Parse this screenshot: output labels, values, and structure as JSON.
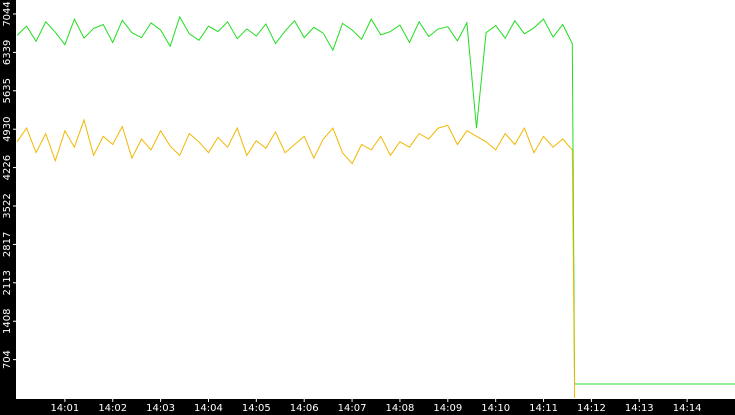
{
  "chart_data": {
    "type": "line",
    "x": [
      0,
      0.2,
      0.4,
      0.6,
      0.8,
      1,
      1.2,
      1.4,
      1.6,
      1.8,
      2,
      2.2,
      2.4,
      2.6,
      2.8,
      3,
      3.2,
      3.4,
      3.6,
      3.8,
      4,
      4.2,
      4.4,
      4.6,
      4.8,
      5,
      5.2,
      5.4,
      5.6,
      5.8,
      6,
      6.2,
      6.4,
      6.6,
      6.8,
      7,
      7.2,
      7.4,
      7.6,
      7.8,
      8,
      8.2,
      8.4,
      8.6,
      8.8,
      9,
      9.2,
      9.4,
      9.6,
      9.8,
      10,
      10.2,
      10.4,
      10.6,
      10.8,
      11,
      11.2,
      11.4,
      11.6,
      11.65,
      11.7,
      15
    ],
    "series": [
      {
        "color": "#22dd22",
        "values": [
          6650,
          6820,
          6540,
          6900,
          6710,
          6480,
          6950,
          6600,
          6780,
          6850,
          6520,
          6930,
          6700,
          6610,
          6880,
          6750,
          6450,
          6990,
          6680,
          6560,
          6820,
          6720,
          6900,
          6590,
          6770,
          6640,
          6860,
          6500,
          6730,
          6920,
          6610,
          6800,
          6690,
          6380,
          6870,
          6750,
          6580,
          6950,
          6660,
          6720,
          6840,
          6520,
          6900,
          6630,
          6770,
          6810,
          6550,
          6880,
          4950,
          6700,
          6830,
          6600,
          6920,
          6680,
          6790,
          6950,
          6620,
          6850,
          6500,
          257,
          257,
          257
        ]
      },
      {
        "color": "#f0b800",
        "values": [
          4700,
          4950,
          4500,
          4850,
          4350,
          4900,
          4600,
          5100,
          4450,
          4800,
          4650,
          4980,
          4400,
          4750,
          4550,
          4900,
          4620,
          4450,
          4850,
          4700,
          4500,
          4780,
          4600,
          4950,
          4450,
          4720,
          4580,
          4880,
          4500,
          4650,
          4800,
          4400,
          4750,
          4950,
          4500,
          4300,
          4650,
          4550,
          4800,
          4450,
          4700,
          4600,
          4850,
          4750,
          4950,
          5000,
          4650,
          4900,
          4800,
          4700,
          4550,
          4850,
          4650,
          4950,
          4500,
          4800,
          4600,
          4750,
          4550,
          0,
          null,
          null
        ]
      }
    ],
    "xlim": [
      0,
      15
    ],
    "xticks": [
      {
        "value": 1,
        "label": "14:01"
      },
      {
        "value": 2,
        "label": "14:02"
      },
      {
        "value": 3,
        "label": "14:03"
      },
      {
        "value": 4,
        "label": "14:04"
      },
      {
        "value": 5,
        "label": "14:05"
      },
      {
        "value": 6,
        "label": "14:06"
      },
      {
        "value": 7,
        "label": "14:07"
      },
      {
        "value": 8,
        "label": "14:08"
      },
      {
        "value": 9,
        "label": "14:09"
      },
      {
        "value": 10,
        "label": "14:10"
      },
      {
        "value": 11,
        "label": "14:11"
      },
      {
        "value": 12,
        "label": "14:12"
      },
      {
        "value": 13,
        "label": "14:13"
      },
      {
        "value": 14,
        "label": "14:14"
      }
    ],
    "ylim": [
      0,
      7300
    ],
    "yticks": [
      704,
      1408,
      2113,
      2817,
      3522,
      4226,
      4930,
      5635,
      6339,
      7044
    ]
  }
}
